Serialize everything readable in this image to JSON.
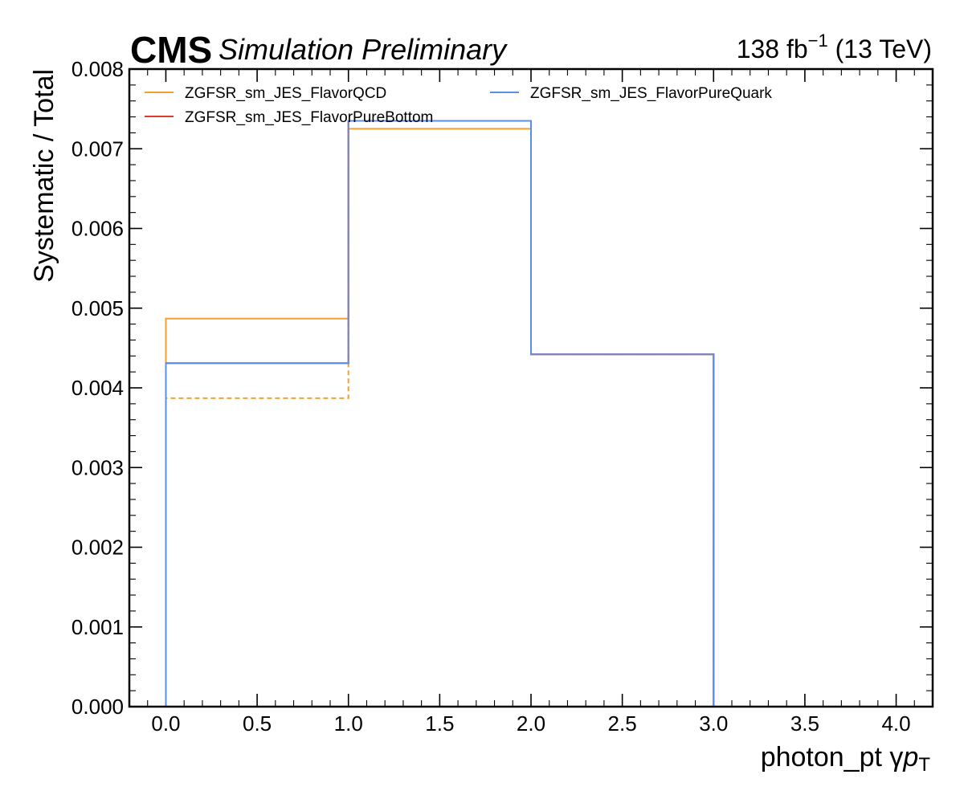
{
  "header": {
    "experiment": "CMS",
    "status": "Simulation Preliminary",
    "lumi_value": "138 fb",
    "lumi_exponent": "−1",
    "energy": "(13 TeV)"
  },
  "colors": {
    "FlavorQCD": "#f5a02c",
    "FlavorPureBottom": "#e03a2f",
    "FlavorPureQuark": "#5b8ee6"
  },
  "chart_data": {
    "type": "step-histogram",
    "xlabel_main": "photon_pt",
    "xlabel_symbol": "γ",
    "xlabel_p": "p",
    "xlabel_sub": "T",
    "ylabel": "Systematic / Total",
    "xlim": [
      -0.2,
      4.2
    ],
    "ylim": [
      0,
      0.008
    ],
    "x_ticks": [
      0.0,
      0.5,
      1.0,
      1.5,
      2.0,
      2.5,
      3.0,
      3.5,
      4.0
    ],
    "x_tick_labels": [
      "0.0",
      "0.5",
      "1.0",
      "1.5",
      "2.0",
      "2.5",
      "3.0",
      "3.5",
      "4.0"
    ],
    "y_ticks": [
      0.0,
      0.001,
      0.002,
      0.003,
      0.004,
      0.005,
      0.006,
      0.007,
      0.008
    ],
    "y_tick_labels": [
      "0.000",
      "0.001",
      "0.002",
      "0.003",
      "0.004",
      "0.005",
      "0.006",
      "0.007",
      "0.008"
    ],
    "bin_edges": [
      0,
      1,
      2,
      3
    ],
    "legend_placement": "top-left, two columns",
    "series": [
      {
        "name": "ZGFSR_sm_JES_FlavorQCD",
        "key": "FlavorQCD",
        "style": "solid",
        "values": [
          0.00487,
          0.00725,
          0.00442
        ]
      },
      {
        "name": "ZGFSR_sm_JES_FlavorQCD",
        "key": "FlavorQCD",
        "style": "dashed",
        "values": [
          0.00387,
          0.00735,
          0.00442
        ]
      },
      {
        "name": "ZGFSR_sm_JES_FlavorPureBottom",
        "key": "FlavorPureBottom",
        "style": "solid",
        "values": [
          0.00431,
          0.00735,
          0.00442
        ]
      },
      {
        "name": "ZGFSR_sm_JES_FlavorPureQuark",
        "key": "FlavorPureQuark",
        "style": "solid",
        "values": [
          0.00431,
          0.00735,
          0.00442
        ]
      }
    ],
    "legend": [
      {
        "label": "ZGFSR_sm_JES_FlavorQCD",
        "key": "FlavorQCD"
      },
      {
        "label": "ZGFSR_sm_JES_FlavorPureQuark",
        "key": "FlavorPureQuark"
      },
      {
        "label": "ZGFSR_sm_JES_FlavorPureBottom",
        "key": "FlavorPureBottom"
      }
    ]
  }
}
